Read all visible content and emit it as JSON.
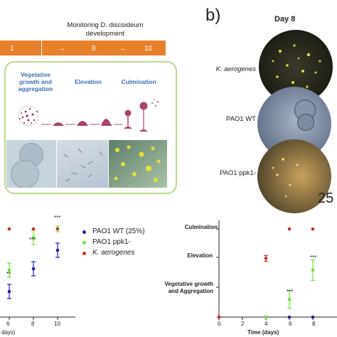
{
  "panel_a": {
    "title_line1": "Monitoring D. discoideum",
    "title_line2": "development",
    "timeline": [
      "1",
      "→",
      "8",
      "→",
      "10"
    ],
    "stages": [
      "Vegetative growth and aggregation",
      "Elevation",
      "Culmination"
    ]
  },
  "panel_b": {
    "label": "b)",
    "column_title": "Day 8",
    "rows": [
      "K. aerogenes",
      "PAO1 WT",
      "PAO1 ppk1-"
    ],
    "scale_fragment": "25"
  },
  "chart_left": {
    "legend": [
      "PAO1 WT (25%)",
      "PAO1 ppk1-",
      "K. aerogenes"
    ],
    "x_ticks": [
      "6",
      "8",
      "10"
    ],
    "x_label_fragment": "days)",
    "significance": [
      "**",
      "***",
      "***"
    ]
  },
  "chart_right": {
    "y_ticks": [
      "Culmination",
      "Elevation",
      "Vegetative growth and Aggregation"
    ],
    "x_ticks": [
      "0",
      "2",
      "4",
      "6",
      "8"
    ],
    "x_label": "Time (days)",
    "significance": [
      "***",
      "***"
    ]
  },
  "chart_data": [
    {
      "type": "scatter",
      "categories": [
        "6",
        "8",
        "10"
      ],
      "series": [
        {
          "name": "PAO1 WT (25%)",
          "color": "#2020b0",
          "values": [
            0.8,
            1.6,
            2.25
          ],
          "err": [
            0.25,
            0.25,
            0.25
          ]
        },
        {
          "name": "PAO1 ppk1-",
          "color": "#6ee43a",
          "values": [
            1.55,
            2.7,
            3.0
          ],
          "err": [
            0.25,
            0.25,
            0.1
          ]
        },
        {
          "name": "K. aerogenes",
          "color": "#d03028",
          "values": [
            3.0,
            3.0,
            3.0
          ],
          "err": [
            0,
            0,
            0
          ]
        }
      ]
    },
    {
      "type": "scatter",
      "x": [
        0,
        4,
        6,
        8
      ],
      "y_levels": [
        "Vegetative growth and Aggregation",
        "Elevation",
        "Culmination"
      ],
      "series": [
        {
          "name": "PAO1 WT (25%)",
          "color": "#2020b0",
          "x": [
            0,
            4,
            6,
            8
          ],
          "values": [
            0,
            0,
            0,
            0
          ]
        },
        {
          "name": "PAO1 ppk1-",
          "color": "#6ee43a",
          "x": [
            0,
            4,
            6,
            8
          ],
          "values": [
            0,
            0,
            0.6,
            1.6
          ],
          "err": [
            0,
            0,
            0.3,
            0.35
          ]
        },
        {
          "name": "K. aerogenes",
          "color": "#d03028",
          "x": [
            0,
            4,
            6,
            8
          ],
          "values": [
            0,
            2.0,
            3.0,
            3.0
          ],
          "err": [
            0,
            0.1,
            0,
            0
          ]
        }
      ]
    }
  ]
}
